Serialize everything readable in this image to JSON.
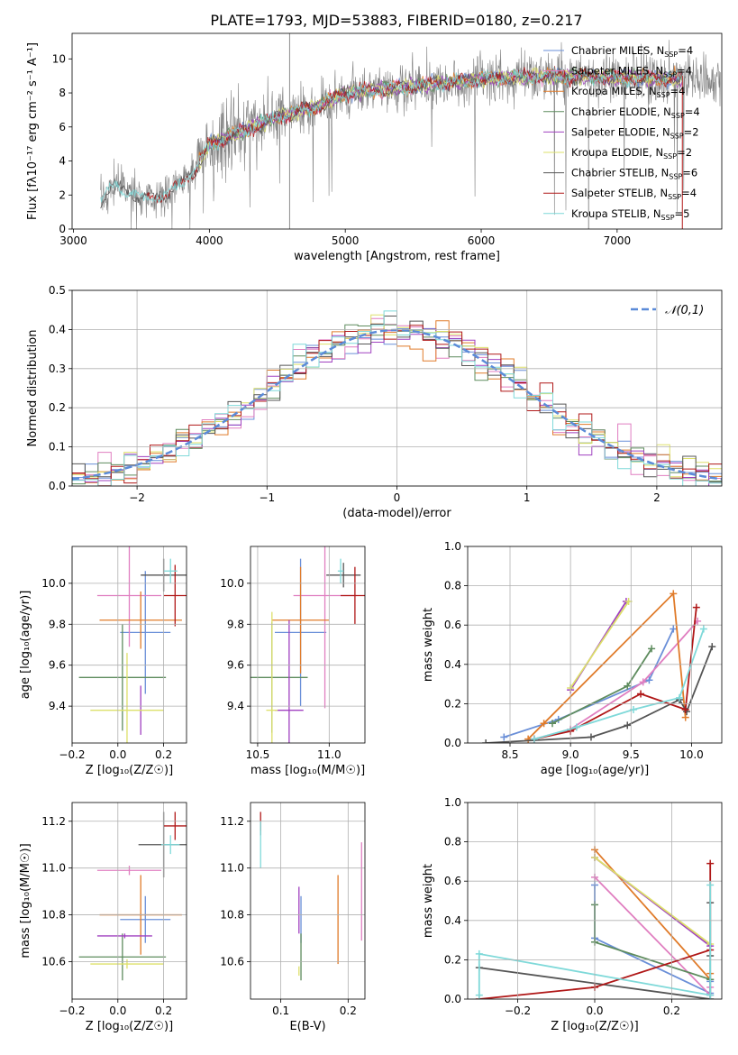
{
  "page_title": "PLATE=1793, MJD=53883, FIBERID=0180, z=0.217",
  "colors": {
    "Chabrier MILES": "#6a8fd8",
    "Salpeter MILES": "#e07ec0",
    "Kroupa MILES": "#e07b2a",
    "Chabrier ELODIE": "#5e8c5e",
    "Salpeter ELODIE": "#a040c0",
    "Kroupa ELODIE": "#dde06a",
    "Chabrier STELIB": "#555555",
    "Salpeter STELIB": "#b01818",
    "Kroupa STELIB": "#7fd9d9",
    "data": "#808080",
    "normal": "#5b8bd8"
  },
  "chart_data": [
    {
      "id": "spectrum",
      "type": "line",
      "title": "PLATE=1793, MJD=53883, FIBERID=0180, z=0.217",
      "xlabel": "wavelength [Angstrom, rest frame]",
      "ylabel": "Flux [fλ10⁻¹⁷ erg cm⁻² s⁻¹ A⁻¹]",
      "xlim": [
        2990,
        7770
      ],
      "ylim": [
        0,
        11.5
      ],
      "xticks": [
        "3000",
        "4000",
        "5000",
        "6000",
        "7000"
      ],
      "yticks": [
        "0",
        "2",
        "4",
        "6",
        "8",
        "10"
      ],
      "continuum": {
        "x": [
          3200,
          3300,
          3500,
          3700,
          3900,
          4000,
          4200,
          4500,
          4800,
          5000,
          5500,
          6000,
          6500,
          7000,
          7500,
          7750
        ],
        "y": [
          1.6,
          2.6,
          1.8,
          2.0,
          3.5,
          5.0,
          5.6,
          6.6,
          7.2,
          8.0,
          8.4,
          8.8,
          9.0,
          8.9,
          8.8,
          8.8
        ]
      },
      "legend": [
        {
          "label": "Chabrier MILES, N",
          "sub": "SSP",
          "n": "=4",
          "color": "#6a8fd8"
        },
        {
          "label": "Salpeter MILES, N",
          "sub": "SSP",
          "n": "=4",
          "color": "#e07ec0"
        },
        {
          "label": "Kroupa MILES, N",
          "sub": "SSP",
          "n": "=4",
          "color": "#e07b2a"
        },
        {
          "label": "Chabrier ELODIE, N",
          "sub": "SSP",
          "n": "=4",
          "color": "#5e8c5e"
        },
        {
          "label": "Salpeter ELODIE, N",
          "sub": "SSP",
          "n": "=2",
          "color": "#a040c0"
        },
        {
          "label": "Kroupa ELODIE, N",
          "sub": "SSP",
          "n": "=2",
          "color": "#dde06a"
        },
        {
          "label": "Chabrier STELIB, N",
          "sub": "SSP",
          "n": "=6",
          "color": "#555555"
        },
        {
          "label": "Salpeter STELIB, N",
          "sub": "SSP",
          "n": "=4",
          "color": "#b01818"
        },
        {
          "label": "Kroupa STELIB, N",
          "sub": "SSP",
          "n": "=5",
          "color": "#7fd9d9"
        }
      ]
    },
    {
      "id": "residuals",
      "type": "bar",
      "xlabel": "(data-model)/error",
      "ylabel": "Normed distribution",
      "xlim": [
        -2.5,
        2.5
      ],
      "ylim": [
        0,
        0.5
      ],
      "xticks": [
        "−2",
        "−1",
        "0",
        "1",
        "2"
      ],
      "yticks": [
        "0.0",
        "0.1",
        "0.2",
        "0.3",
        "0.4",
        "0.5"
      ],
      "bin_width": 0.1,
      "legend_label": "𝒩(0,1)"
    },
    {
      "id": "z-age",
      "type": "scatter",
      "xlabel": "Z [log₁₀(Z/Z☉)]",
      "ylabel": "age  [log₁₀(age/yr)]",
      "xlim": [
        -0.2,
        0.3
      ],
      "ylim": [
        9.22,
        10.18
      ],
      "xticks": [
        "−0.2",
        "0.0",
        "0.2"
      ],
      "yticks": [
        "9.4",
        "9.6",
        "9.8",
        "10.0"
      ],
      "series": [
        {
          "name": "Chabrier MILES",
          "x": 0.12,
          "xerr": 0.11,
          "y": 9.76,
          "yerr": 0.3
        },
        {
          "name": "Salpeter MILES",
          "x": 0.05,
          "xerr": 0.14,
          "y": 9.94,
          "yerr": 0.25
        },
        {
          "name": "Kroupa MILES",
          "x": 0.1,
          "xerr": 0.18,
          "y": 9.82,
          "yerr": 0.14
        },
        {
          "name": "Chabrier ELODIE",
          "x": 0.02,
          "xerr": 0.19,
          "y": 9.54,
          "yerr": 0.26
        },
        {
          "name": "Salpeter ELODIE",
          "x": 0.1,
          "xerr": 0.005,
          "y": 9.38,
          "yerr": 0.12
        },
        {
          "name": "Kroupa ELODIE",
          "x": 0.04,
          "xerr": 0.16,
          "y": 9.38,
          "yerr": 0.28
        },
        {
          "name": "Chabrier STELIB",
          "x": 0.2,
          "xerr": 0.1,
          "y": 10.04,
          "yerr": 0.08
        },
        {
          "name": "Salpeter STELIB",
          "x": 0.25,
          "xerr": 0.05,
          "y": 9.94,
          "yerr": 0.15
        },
        {
          "name": "Kroupa STELIB",
          "x": 0.23,
          "xerr": 0.03,
          "y": 10.06,
          "yerr": 0.06
        }
      ]
    },
    {
      "id": "mass-age",
      "type": "scatter",
      "xlabel": "mass [log₁₀(M/M☉)]",
      "ylabel": "",
      "xlim": [
        10.45,
        11.25
      ],
      "ylim": [
        9.22,
        10.18
      ],
      "xticks": [
        "10.5",
        "11.0"
      ],
      "yticks": [
        "9.4",
        "9.6",
        "9.8",
        "10.0"
      ],
      "series": [
        {
          "name": "Chabrier MILES",
          "x": 10.8,
          "xerr": 0.18,
          "y": 9.76,
          "yerr": 0.36
        },
        {
          "name": "Salpeter MILES",
          "x": 10.97,
          "xerr": 0.22,
          "y": 9.94,
          "yerr": 0.55
        },
        {
          "name": "Kroupa MILES",
          "x": 10.8,
          "xerr": 0.2,
          "y": 9.82,
          "yerr": 0.26
        },
        {
          "name": "Chabrier ELODIE",
          "x": 10.6,
          "xerr": 0.25,
          "y": 9.54,
          "yerr": 0.27
        },
        {
          "name": "Salpeter ELODIE",
          "x": 10.72,
          "xerr": 0.1,
          "y": 9.38,
          "yerr": 0.44
        },
        {
          "name": "Kroupa ELODIE",
          "x": 10.6,
          "xerr": 0.04,
          "y": 9.38,
          "yerr": 0.48
        },
        {
          "name": "Chabrier STELIB",
          "x": 11.1,
          "xerr": 0.12,
          "y": 10.04,
          "yerr": 0.06
        },
        {
          "name": "Salpeter STELIB",
          "x": 11.18,
          "xerr": 0.1,
          "y": 9.94,
          "yerr": 0.14
        },
        {
          "name": "Kroupa STELIB",
          "x": 11.08,
          "xerr": 0.02,
          "y": 10.06,
          "yerr": 0.06
        }
      ]
    },
    {
      "id": "age-weight",
      "type": "line",
      "xlabel": "age  [log₁₀(age/yr)]",
      "ylabel": "mass weight",
      "xlim": [
        8.15,
        10.25
      ],
      "ylim": [
        0,
        1.0
      ],
      "xticks": [
        "8.5",
        "9.0",
        "9.5",
        "10.0"
      ],
      "yticks": [
        "0.0",
        "0.2",
        "0.4",
        "0.6",
        "0.8",
        "1.0"
      ],
      "series": [
        {
          "name": "Chabrier MILES",
          "x": [
            8.45,
            8.9,
            9.65,
            9.85
          ],
          "y": [
            0.03,
            0.12,
            0.32,
            0.58
          ]
        },
        {
          "name": "Salpeter MILES",
          "x": [
            8.7,
            9.0,
            9.6,
            10.05
          ],
          "y": [
            0.02,
            0.07,
            0.31,
            0.62
          ]
        },
        {
          "name": "Kroupa MILES",
          "x": [
            8.65,
            8.78,
            9.85,
            9.95
          ],
          "y": [
            0.02,
            0.1,
            0.76,
            0.13
          ]
        },
        {
          "name": "Chabrier ELODIE",
          "x": [
            8.85,
            9.47,
            9.67
          ],
          "y": [
            0.1,
            0.29,
            0.48
          ]
        },
        {
          "name": "Salpeter ELODIE",
          "x": [
            9.0,
            9.46
          ],
          "y": [
            0.27,
            0.72
          ]
        },
        {
          "name": "Kroupa ELODIE",
          "x": [
            9.0,
            9.48
          ],
          "y": [
            0.28,
            0.72
          ]
        },
        {
          "name": "Chabrier STELIB",
          "x": [
            8.3,
            9.17,
            9.47,
            9.9,
            9.96,
            10.17
          ],
          "y": [
            0.0,
            0.03,
            0.09,
            0.22,
            0.16,
            0.49
          ]
        },
        {
          "name": "Salpeter STELIB",
          "x": [
            8.7,
            9.0,
            9.58,
            9.95,
            10.04
          ],
          "y": [
            0.02,
            0.06,
            0.25,
            0.17,
            0.69
          ]
        },
        {
          "name": "Kroupa STELIB",
          "x": [
            8.7,
            9.05,
            9.52,
            9.9,
            10.1
          ],
          "y": [
            0.02,
            0.08,
            0.17,
            0.23,
            0.58
          ]
        }
      ]
    },
    {
      "id": "z-mass",
      "type": "scatter",
      "xlabel": "Z [log₁₀(Z/Z☉)]",
      "ylabel": "mass [log₁₀(M/M☉)]",
      "xlim": [
        -0.2,
        0.3
      ],
      "ylim": [
        10.44,
        11.28
      ],
      "xticks": [
        "−0.2",
        "0.0",
        "0.2"
      ],
      "yticks": [
        "10.6",
        "10.8",
        "11.0",
        "11.2"
      ],
      "series": [
        {
          "name": "Chabrier MILES",
          "x": 0.12,
          "xerr": 0.11,
          "y": 10.78,
          "yerr": 0.1
        },
        {
          "name": "Salpeter MILES",
          "x": 0.05,
          "xerr": 0.14,
          "y": 10.99,
          "yerr": 0.02
        },
        {
          "name": "Kroupa MILES",
          "x": 0.1,
          "xerr": 0.18,
          "y": 10.8,
          "yerr": 0.17
        },
        {
          "name": "Chabrier ELODIE",
          "x": 0.02,
          "xerr": 0.19,
          "y": 10.62,
          "yerr": 0.1
        },
        {
          "name": "Salpeter ELODIE",
          "x": 0.03,
          "xerr": 0.12,
          "y": 10.71,
          "yerr": 0.01
        },
        {
          "name": "Kroupa ELODIE",
          "x": 0.04,
          "xerr": 0.16,
          "y": 10.59,
          "yerr": 0.02
        },
        {
          "name": "Chabrier STELIB",
          "x": 0.2,
          "xerr": 0.11,
          "y": 11.1,
          "yerr": 0.14
        },
        {
          "name": "Salpeter STELIB",
          "x": 0.25,
          "xerr": 0.05,
          "y": 11.18,
          "yerr": 0.06
        },
        {
          "name": "Kroupa STELIB",
          "x": 0.23,
          "xerr": 0.04,
          "y": 11.1,
          "yerr": 0.04
        }
      ]
    },
    {
      "id": "ebv-mass",
      "type": "scatter",
      "xlabel": "E(B-V)",
      "ylabel": "",
      "xlim": [
        0.055,
        0.225
      ],
      "ylim": [
        10.44,
        11.28
      ],
      "xticks": [
        "0.1",
        "0.2"
      ],
      "yticks": [
        "10.6",
        "10.8",
        "11.0",
        "11.2"
      ],
      "series": [
        {
          "name": "Chabrier MILES",
          "x": 0.13,
          "y": 10.78,
          "yerr": 0.1
        },
        {
          "name": "Salpeter MILES",
          "x": 0.22,
          "y": 10.9,
          "yerr": 0.21
        },
        {
          "name": "Kroupa MILES",
          "x": 0.185,
          "y": 10.78,
          "yerr": 0.19
        },
        {
          "name": "Chabrier ELODIE",
          "x": 0.13,
          "y": 10.62,
          "yerr": 0.1
        },
        {
          "name": "Salpeter ELODIE",
          "x": 0.127,
          "y": 10.82,
          "yerr": 0.1
        },
        {
          "name": "Kroupa ELODIE",
          "x": 0.127,
          "y": 10.56,
          "yerr": 0.02
        },
        {
          "name": "Chabrier STELIB",
          "x": 0.07,
          "y": 11.17,
          "yerr": 0.03
        },
        {
          "name": "Salpeter STELIB",
          "x": 0.07,
          "y": 11.2,
          "yerr": 0.04
        },
        {
          "name": "Kroupa STELIB",
          "x": 0.07,
          "y": 11.1,
          "yerr": 0.1
        }
      ]
    },
    {
      "id": "z-weight",
      "type": "line",
      "xlabel": "Z [log₁₀(Z/Z☉)]",
      "ylabel": "mass weight",
      "xlim": [
        -0.33,
        0.33
      ],
      "ylim": [
        0,
        1.0
      ],
      "xticks": [
        "−0.2",
        "0.0",
        "0.2"
      ],
      "yticks": [
        "0.0",
        "0.2",
        "0.4",
        "0.6",
        "0.8",
        "1.0"
      ],
      "series": [
        {
          "name": "Chabrier MILES",
          "x": [
            0.0,
            0.0,
            0.3,
            0.3
          ],
          "y": [
            0.58,
            0.31,
            0.03,
            0.09
          ]
        },
        {
          "name": "Salpeter MILES",
          "x": [
            0.0,
            0.3,
            0.3
          ],
          "y": [
            0.62,
            0.02,
            0.06
          ]
        },
        {
          "name": "Kroupa MILES",
          "x": [
            0.0,
            0.3,
            0.3
          ],
          "y": [
            0.76,
            0.1,
            0.13
          ]
        },
        {
          "name": "Chabrier ELODIE",
          "x": [
            0.0,
            0.0,
            0.3
          ],
          "y": [
            0.48,
            0.29,
            0.1
          ]
        },
        {
          "name": "Salpeter ELODIE",
          "x": [
            0.0,
            0.3
          ],
          "y": [
            0.72,
            0.27
          ]
        },
        {
          "name": "Kroupa ELODIE",
          "x": [
            0.0,
            0.3
          ],
          "y": [
            0.72,
            0.28
          ]
        },
        {
          "name": "Chabrier STELIB",
          "x": [
            -0.3,
            0.3,
            0.3,
            0.3
          ],
          "y": [
            0.16,
            0.0,
            0.49,
            0.22
          ]
        },
        {
          "name": "Salpeter STELIB",
          "x": [
            -0.3,
            0.0,
            0.3,
            0.3
          ],
          "y": [
            0.0,
            0.06,
            0.25,
            0.69
          ]
        },
        {
          "name": "Kroupa STELIB",
          "x": [
            -0.3,
            -0.3,
            0.3,
            0.3
          ],
          "y": [
            0.02,
            0.23,
            0.02,
            0.58
          ]
        }
      ]
    }
  ]
}
